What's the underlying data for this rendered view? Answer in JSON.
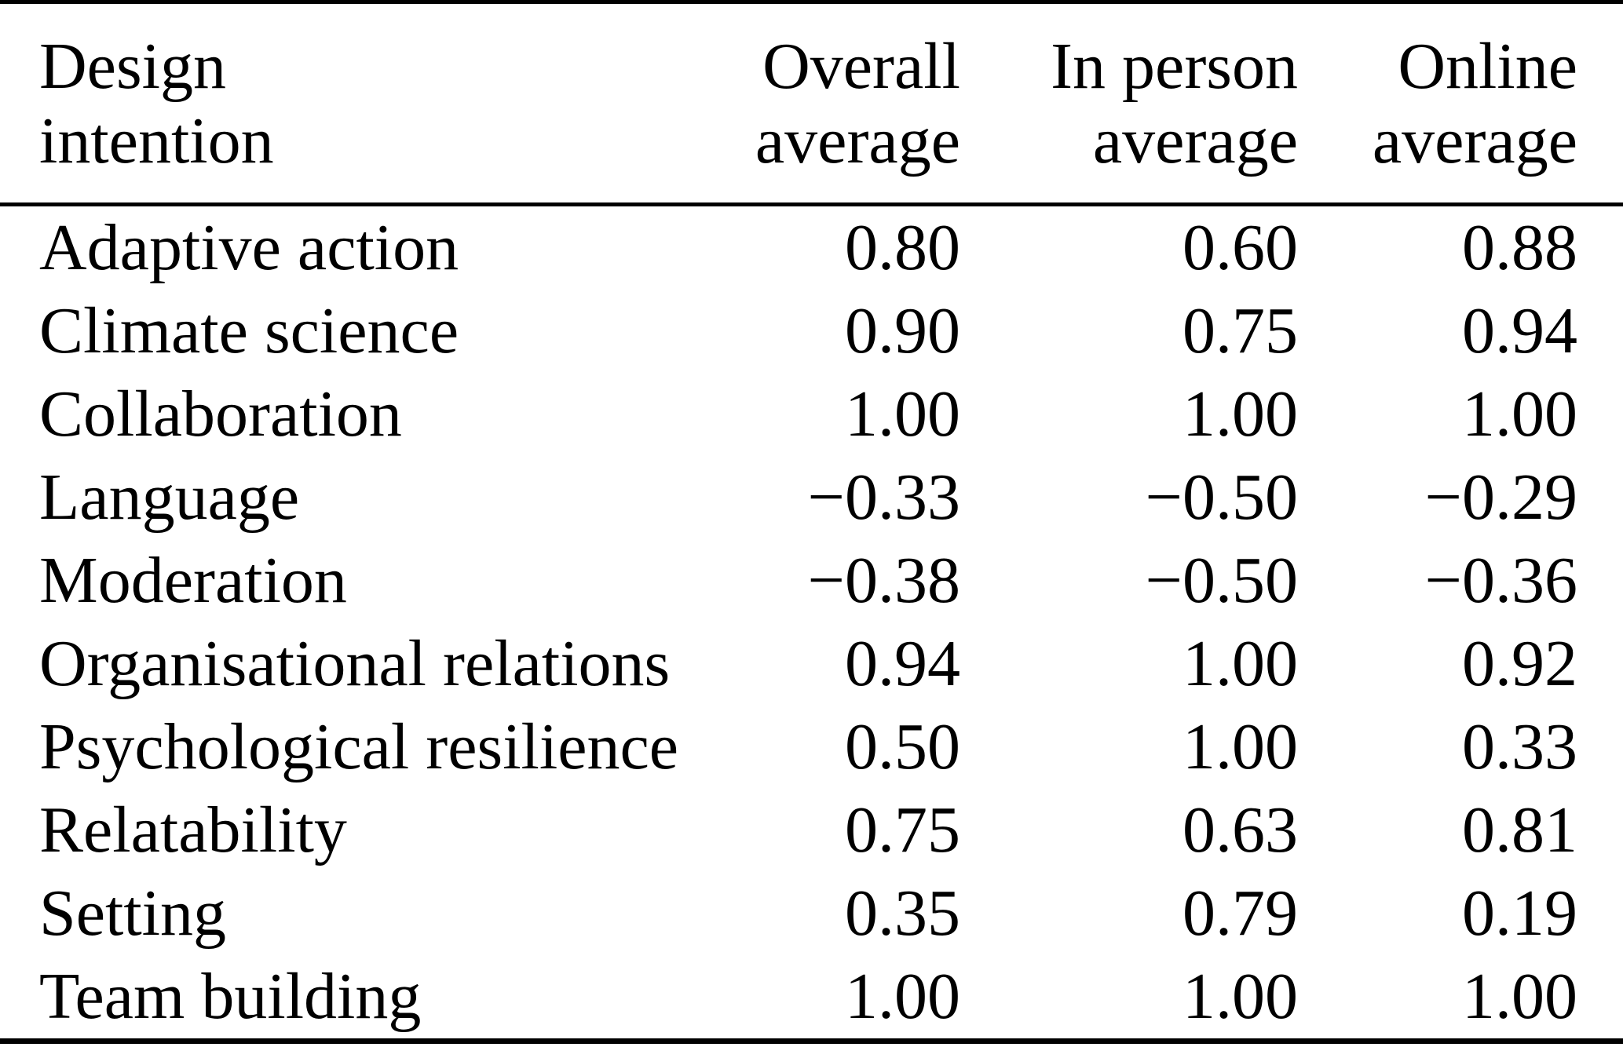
{
  "colors": {
    "background": "#ffffff",
    "text": "#000000",
    "rule": "#000000"
  },
  "table": {
    "columns": [
      {
        "line1": "Design",
        "line2": "intention"
      },
      {
        "line1": "Overall",
        "line2": "average"
      },
      {
        "line1": "In person",
        "line2": "average"
      },
      {
        "line1": "Online",
        "line2": "average"
      }
    ],
    "rows": [
      {
        "intention": "Adaptive action",
        "overall": "0.80",
        "in_person": "0.60",
        "online": "0.88"
      },
      {
        "intention": "Climate science",
        "overall": "0.90",
        "in_person": "0.75",
        "online": "0.94"
      },
      {
        "intention": "Collaboration",
        "overall": "1.00",
        "in_person": "1.00",
        "online": "1.00"
      },
      {
        "intention": "Language",
        "overall": "−0.33",
        "in_person": "−0.50",
        "online": "−0.29"
      },
      {
        "intention": "Moderation",
        "overall": "−0.38",
        "in_person": "−0.50",
        "online": "−0.36"
      },
      {
        "intention": "Organisational relations",
        "overall": "0.94",
        "in_person": "1.00",
        "online": "0.92"
      },
      {
        "intention": "Psychological resilience",
        "overall": "0.50",
        "in_person": "1.00",
        "online": "0.33"
      },
      {
        "intention": "Relatability",
        "overall": "0.75",
        "in_person": "0.63",
        "online": "0.81"
      },
      {
        "intention": "Setting",
        "overall": "0.35",
        "in_person": "0.79",
        "online": "0.19"
      },
      {
        "intention": "Team building",
        "overall": "1.00",
        "in_person": "1.00",
        "online": "1.00"
      }
    ]
  },
  "chart_data": {
    "type": "table",
    "title": "",
    "columns": [
      "Design intention",
      "Overall average",
      "In person average",
      "Online average"
    ],
    "categories": [
      "Adaptive action",
      "Climate science",
      "Collaboration",
      "Language",
      "Moderation",
      "Organisational relations",
      "Psychological resilience",
      "Relatability",
      "Setting",
      "Team building"
    ],
    "series": [
      {
        "name": "Overall average",
        "values": [
          0.8,
          0.9,
          1.0,
          -0.33,
          -0.38,
          0.94,
          0.5,
          0.75,
          0.35,
          1.0
        ]
      },
      {
        "name": "In person average",
        "values": [
          0.6,
          0.75,
          1.0,
          -0.5,
          -0.5,
          1.0,
          1.0,
          0.63,
          0.79,
          1.0
        ]
      },
      {
        "name": "Online average",
        "values": [
          0.88,
          0.94,
          1.0,
          -0.29,
          -0.36,
          0.92,
          0.33,
          0.81,
          0.19,
          1.0
        ]
      }
    ]
  }
}
